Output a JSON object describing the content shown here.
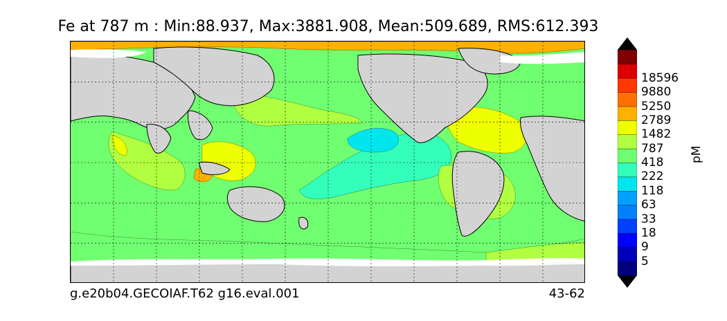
{
  "title": "Fe at 787 m : Min:88.937, Max:3881.908, Mean:509.689, RMS:612.393",
  "footer": {
    "left": "g.e20b04.GECOIAF.T62 g16.eval.001",
    "right": "43-62"
  },
  "colorbar": {
    "unit": "pM",
    "levels": [
      "5",
      "9",
      "18",
      "33",
      "63",
      "118",
      "222",
      "418",
      "787",
      "1482",
      "2789",
      "5250",
      "9880",
      "18596"
    ],
    "colors": [
      "#00007f",
      "#0000bb",
      "#0000ff",
      "#0040ff",
      "#0080ff",
      "#00a0ff",
      "#00e5ee",
      "#33ffbb",
      "#70ff70",
      "#b0ff40",
      "#eeff00",
      "#ffb000",
      "#ff7000",
      "#ff3800",
      "#dd0000",
      "#7f0000"
    ],
    "extend_low": "#000000",
    "extend_high": "#000000"
  },
  "map": {
    "land_color": "#d3d3d3",
    "ice_color": "#ffffff",
    "gridlines": "dashed"
  }
}
